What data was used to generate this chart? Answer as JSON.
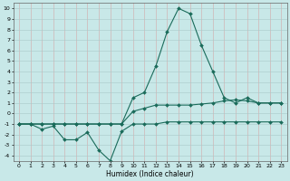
{
  "xlabel": "Humidex (Indice chaleur)",
  "bg_color": "#c8e8e8",
  "grid_color": "#a8c8c8",
  "line_color": "#1a6b5a",
  "xlim": [
    -0.5,
    23.5
  ],
  "ylim": [
    -4.5,
    10.5
  ],
  "xticks": [
    0,
    1,
    2,
    3,
    4,
    5,
    6,
    7,
    8,
    9,
    10,
    11,
    12,
    13,
    14,
    15,
    16,
    17,
    18,
    19,
    20,
    21,
    22,
    23
  ],
  "yticks": [
    -4,
    -3,
    -2,
    -1,
    0,
    1,
    2,
    3,
    4,
    5,
    6,
    7,
    8,
    9,
    10
  ],
  "line1_x": [
    0,
    1,
    2,
    3,
    4,
    5,
    6,
    7,
    8,
    9,
    10,
    11,
    12,
    13,
    14,
    15,
    16,
    17,
    18,
    19,
    20,
    21,
    22,
    23
  ],
  "line1_y": [
    -1,
    -1,
    -1.5,
    -1.2,
    -2.5,
    -2.5,
    -1.8,
    -3.5,
    -4.5,
    -1.7,
    -1,
    -1,
    -1,
    -0.8,
    -0.8,
    -0.8,
    -0.8,
    -0.8,
    -0.8,
    -0.8,
    -0.8,
    -0.8,
    -0.8,
    -0.8
  ],
  "line2_x": [
    0,
    1,
    2,
    3,
    4,
    5,
    6,
    7,
    8,
    9,
    10,
    11,
    12,
    13,
    14,
    15,
    16,
    17,
    18,
    19,
    20,
    21,
    22,
    23
  ],
  "line2_y": [
    -1,
    -1,
    -1,
    -1,
    -1,
    -1,
    -1,
    -1,
    -1,
    -1,
    0.2,
    0.5,
    0.8,
    0.8,
    0.8,
    0.8,
    0.9,
    1.0,
    1.2,
    1.3,
    1.2,
    1.0,
    1.0,
    1.0
  ],
  "line3_x": [
    0,
    1,
    2,
    3,
    4,
    5,
    6,
    7,
    8,
    9,
    10,
    11,
    12,
    13,
    14,
    15,
    16,
    17,
    18,
    19,
    20,
    21,
    22,
    23
  ],
  "line3_y": [
    -1,
    -1,
    -1,
    -1,
    -1,
    -1,
    -1,
    -1,
    -1,
    -1,
    1.5,
    2,
    4.5,
    7.8,
    10,
    9.5,
    6.5,
    4,
    1.5,
    1,
    1.5,
    1,
    1,
    1
  ]
}
